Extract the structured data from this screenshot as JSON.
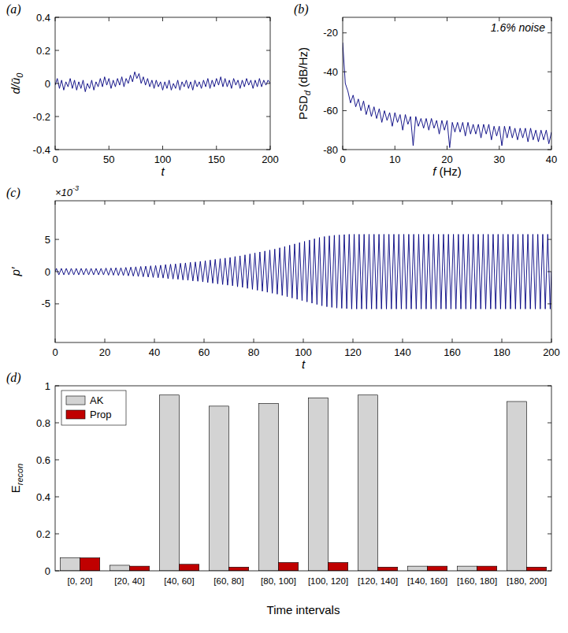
{
  "chart_data": [
    {
      "type": "line",
      "panel": "(a)",
      "xlabel": [
        {
          "text": "t"
        }
      ],
      "ylabel": [
        {
          "text": "d/ū"
        },
        {
          "text": "0",
          "sub": true
        }
      ],
      "xlim": [
        0,
        200
      ],
      "xticks": [
        0,
        50,
        100,
        150,
        200
      ],
      "ylim": [
        -0.4,
        0.4
      ],
      "yticks": [
        -0.4,
        -0.2,
        0,
        0.2,
        0.4
      ],
      "x": [
        0,
        2,
        4,
        6,
        8,
        10,
        12,
        14,
        16,
        18,
        20,
        22,
        24,
        26,
        28,
        30,
        32,
        34,
        36,
        38,
        40,
        42,
        44,
        46,
        48,
        50,
        52,
        54,
        56,
        58,
        60,
        62,
        64,
        66,
        68,
        70,
        72,
        74,
        76,
        78,
        80,
        82,
        84,
        86,
        88,
        90,
        92,
        94,
        96,
        98,
        100,
        102,
        104,
        106,
        108,
        110,
        112,
        114,
        116,
        118,
        120,
        122,
        124,
        126,
        128,
        130,
        132,
        134,
        136,
        138,
        140,
        142,
        144,
        146,
        148,
        150,
        152,
        154,
        156,
        158,
        160,
        162,
        164,
        166,
        168,
        170,
        172,
        174,
        176,
        178,
        180,
        182,
        184,
        186,
        188,
        190,
        192,
        194,
        196,
        198,
        200
      ],
      "series": [
        {
          "color": "#00007f",
          "values": [
            -0.01,
            0.03,
            -0.03,
            0.02,
            -0.04,
            0.01,
            -0.02,
            0.03,
            -0.03,
            0.02,
            -0.04,
            0.01,
            -0.03,
            0.02,
            -0.05,
            0,
            -0.03,
            0.02,
            -0.04,
            0.01,
            -0.02,
            0.03,
            -0.02,
            0.04,
            -0.01,
            0.03,
            -0.03,
            0.02,
            -0.02,
            0.03,
            -0.01,
            0.04,
            -0.02,
            0.03,
            0,
            0.05,
            0.01,
            0.07,
            0.03,
            0.06,
            0,
            0.04,
            -0.01,
            0.03,
            -0.02,
            0.02,
            -0.03,
            0.02,
            -0.02,
            0.01,
            -0.04,
            0.01,
            -0.03,
            0.02,
            -0.04,
            0,
            -0.03,
            0.02,
            -0.04,
            0.01,
            -0.02,
            0.02,
            -0.03,
            0.01,
            -0.04,
            0.02,
            -0.02,
            0.01,
            -0.03,
            0.02,
            -0.02,
            0.03,
            -0.03,
            0.02,
            -0.02,
            0.03,
            -0.01,
            0.04,
            -0.02,
            0.03,
            -0.02,
            0.02,
            -0.03,
            0.03,
            -0.01,
            0.02,
            -0.03,
            0.02,
            -0.02,
            0.03,
            -0.01,
            0.02,
            -0.03,
            0.02,
            -0.02,
            0.03,
            -0.02,
            0.02,
            -0.01,
            0.02,
            0
          ]
        }
      ]
    },
    {
      "type": "line",
      "panel": "(b)",
      "annotation": "1.6% noise",
      "xlabel": [
        {
          "text": "f"
        },
        {
          "text": " (Hz)"
        }
      ],
      "ylabel": [
        {
          "text": "PSD"
        },
        {
          "text": "d",
          "sub": true
        },
        {
          "text": " (dB/Hz)"
        }
      ],
      "xlim": [
        0,
        40
      ],
      "xticks": [
        0,
        10,
        20,
        30,
        40
      ],
      "ylim": [
        -80,
        -12
      ],
      "yticks": [
        -80,
        -60,
        -40,
        -20
      ],
      "x": [
        0,
        0.5,
        1,
        1.5,
        2,
        2.5,
        3,
        3.5,
        4,
        4.5,
        5,
        5.5,
        6,
        6.5,
        7,
        7.5,
        8,
        8.5,
        9,
        9.5,
        10,
        10.5,
        11,
        11.5,
        12,
        12.5,
        13,
        13.5,
        14,
        14.5,
        15,
        15.5,
        16,
        16.5,
        17,
        17.5,
        18,
        18.5,
        19,
        19.5,
        20,
        20.5,
        21,
        21.5,
        22,
        22.5,
        23,
        23.5,
        24,
        24.5,
        25,
        25.5,
        26,
        26.5,
        27,
        27.5,
        28,
        28.5,
        29,
        29.5,
        30,
        30.5,
        31,
        31.5,
        32,
        32.5,
        33,
        33.5,
        34,
        34.5,
        35,
        35.5,
        36,
        36.5,
        37,
        37.5,
        38,
        38.5,
        39,
        39.5,
        40
      ],
      "series": [
        {
          "color": "#00007f",
          "values": [
            -25,
            -46,
            -50,
            -56,
            -52,
            -58,
            -54,
            -60,
            -55,
            -62,
            -57,
            -63,
            -58,
            -64,
            -59,
            -66,
            -60,
            -65,
            -61,
            -68,
            -61,
            -66,
            -62,
            -70,
            -62,
            -67,
            -63,
            -78,
            -63,
            -68,
            -64,
            -69,
            -64,
            -70,
            -64,
            -69,
            -65,
            -72,
            -65,
            -70,
            -65,
            -79,
            -66,
            -71,
            -66,
            -71,
            -66,
            -73,
            -66,
            -72,
            -67,
            -72,
            -67,
            -74,
            -67,
            -72,
            -67,
            -75,
            -68,
            -73,
            -68,
            -78,
            -68,
            -74,
            -68,
            -74,
            -69,
            -75,
            -69,
            -74,
            -69,
            -76,
            -69,
            -75,
            -70,
            -76,
            -70,
            -75,
            -70,
            -77,
            -71
          ]
        }
      ]
    },
    {
      "type": "line",
      "panel": "(c)",
      "multiplier": [
        {
          "text": "×10"
        },
        {
          "text": "-3",
          "sup": true
        }
      ],
      "xlabel": [
        {
          "text": "t"
        }
      ],
      "ylabel": [
        {
          "text": "p′"
        }
      ],
      "xlim": [
        0,
        200
      ],
      "xticks": [
        0,
        20,
        40,
        60,
        80,
        100,
        120,
        140,
        160,
        180,
        200
      ],
      "ylim": [
        -11,
        11
      ],
      "yticks": [
        -5,
        0,
        5
      ],
      "x": [
        0,
        0.5,
        1.5,
        2.5,
        3.5,
        4.5,
        5.5,
        6.5,
        7.5,
        8.5,
        9.5,
        10.5,
        11.5,
        12.5,
        13.5,
        14.5,
        15.5,
        16.5,
        17.5,
        18.5,
        19.5,
        20.5,
        21.5,
        22.5,
        23.5,
        24.5,
        25.5,
        26.5,
        27.5,
        28.5,
        29.5,
        30.5,
        31.5,
        32.5,
        33.5,
        34.5,
        35.5,
        36.5,
        37.5,
        38.5,
        39.5,
        40.5,
        41.5,
        42.5,
        43.5,
        44.5,
        45.5,
        46.5,
        47.5,
        48.5,
        49.5,
        50.5,
        51.5,
        52.5,
        53.5,
        54.5,
        55.5,
        56.5,
        57.5,
        58.5,
        59.5,
        60.5,
        61.5,
        62.5,
        63.5,
        64.5,
        65.5,
        66.5,
        67.5,
        68.5,
        69.5,
        70.5,
        71.5,
        72.5,
        73.5,
        74.5,
        75.5,
        76.5,
        77.5,
        78.5,
        79.5,
        80.5,
        81.5,
        82.5,
        83.5,
        84.5,
        85.5,
        86.5,
        87.5,
        88.5,
        89.5,
        90.5,
        91.5,
        92.5,
        93.5,
        94.5,
        95.5,
        96.5,
        97.5,
        98.5,
        99.5,
        100.5,
        101.5,
        102.5,
        103.5,
        104.5,
        105.5,
        106.5,
        107.5,
        108.5,
        109.5,
        110.5,
        111.5,
        112.5,
        113.5,
        114.5,
        115.5,
        116.5,
        117.5,
        118.5,
        119.5,
        120.5,
        121.5,
        122.5,
        123.5,
        124.5,
        125.5,
        126.5,
        127.5,
        128.5,
        129.5,
        130.5,
        131.5,
        132.5,
        133.5,
        134.5,
        135.5,
        136.5,
        137.5,
        138.5,
        139.5,
        140.5,
        141.5,
        142.5,
        143.5,
        144.5,
        145.5,
        146.5,
        147.5,
        148.5,
        149.5,
        150.5,
        151.5,
        152.5,
        153.5,
        154.5,
        155.5,
        156.5,
        157.5,
        158.5,
        159.5,
        160.5,
        161.5,
        162.5,
        163.5,
        164.5,
        165.5,
        166.5,
        167.5,
        168.5,
        169.5,
        170.5,
        171.5,
        172.5,
        173.5,
        174.5,
        175.5,
        176.5,
        177.5,
        178.5,
        179.5,
        180.5,
        181.5,
        182.5,
        183.5,
        184.5,
        185.5,
        186.5,
        187.5,
        188.5,
        189.5,
        190.5,
        191.5,
        192.5,
        193.5,
        194.5,
        195.5,
        196.5,
        197.5,
        198.5,
        199.5,
        200
      ],
      "series": [
        {
          "color": "#00007f",
          "values": [
            0,
            0.5,
            -0.5,
            0.5,
            -0.5,
            0.5,
            -0.5,
            0.5,
            -0.5,
            0.5,
            -0.5,
            0.5,
            -0.5,
            0.5,
            -0.5,
            0.5,
            -0.5,
            0.5,
            -0.5,
            0.5,
            -0.5,
            0.55,
            -0.55,
            0.55,
            -0.55,
            0.6,
            -0.6,
            0.6,
            -0.6,
            0.65,
            -0.65,
            0.7,
            -0.7,
            0.75,
            -0.75,
            0.8,
            -0.8,
            0.85,
            -0.85,
            0.9,
            -0.9,
            0.95,
            -0.95,
            1,
            -1,
            1.1,
            -1.1,
            1.15,
            -1.15,
            1.2,
            -1.2,
            1.3,
            -1.3,
            1.35,
            -1.35,
            1.45,
            -1.45,
            1.5,
            -1.5,
            1.6,
            -1.6,
            1.7,
            -1.7,
            1.8,
            -1.8,
            1.9,
            -1.9,
            2,
            -2,
            2.1,
            -2.1,
            2.2,
            -2.2,
            2.35,
            -2.35,
            2.45,
            -2.45,
            2.6,
            -2.6,
            2.75,
            -2.75,
            2.9,
            -2.9,
            3.05,
            -3.05,
            3.2,
            -3.2,
            3.35,
            -3.35,
            3.5,
            -3.5,
            3.7,
            -3.7,
            3.9,
            -3.9,
            4.1,
            -4.1,
            4.3,
            -4.3,
            4.5,
            -4.5,
            4.7,
            -4.7,
            4.9,
            -4.9,
            5.1,
            -5.1,
            5.3,
            -5.3,
            5.45,
            -5.45,
            5.55,
            -5.55,
            5.65,
            -5.65,
            5.7,
            -5.7,
            5.75,
            -5.75,
            5.8,
            -5.8,
            5.8,
            -5.8,
            5.8,
            -5.8,
            5.8,
            -5.8,
            5.8,
            -5.8,
            5.8,
            -5.8,
            5.8,
            -5.8,
            5.8,
            -5.8,
            5.8,
            -5.8,
            5.8,
            -5.8,
            5.8,
            -5.8,
            5.8,
            -5.8,
            5.8,
            -5.8,
            5.8,
            -5.8,
            5.8,
            -5.8,
            5.8,
            -5.8,
            5.8,
            -5.8,
            5.8,
            -5.8,
            5.8,
            -5.8,
            5.8,
            -5.8,
            5.8,
            -5.8,
            5.8,
            -5.8,
            5.8,
            -5.8,
            5.8,
            -5.8,
            5.8,
            -5.8,
            5.8,
            -5.8,
            5.8,
            -5.8,
            5.8,
            -5.8,
            5.8,
            -5.8,
            5.8,
            -5.8,
            5.8,
            -5.8,
            5.8,
            -5.8,
            5.8,
            -5.8,
            5.8,
            -5.8,
            5.8,
            -5.8,
            5.8,
            -5.8,
            5.8,
            -5.8,
            5.8,
            -5.8,
            5.8,
            -5.8,
            5.8,
            -5.8,
            5.8,
            -5.8,
            0
          ]
        }
      ]
    },
    {
      "type": "bar",
      "panel": "(d)",
      "xlabel": [
        {
          "text": "Time intervals"
        }
      ],
      "ylabel": [
        {
          "text": "E"
        },
        {
          "text": "recon",
          "sub": true
        }
      ],
      "categories": [
        "[0, 20]",
        "[20, 40]",
        "[40, 60]",
        "[60, 80]",
        "[80, 100]",
        "[100, 120]",
        "[120, 140]",
        "[140, 160]",
        "[160, 180]",
        "[180, 200]"
      ],
      "ylim": [
        0,
        1
      ],
      "yticks": [
        0,
        0.2,
        0.4,
        0.6,
        0.8,
        1
      ],
      "legend": "upper left",
      "series": [
        {
          "name": "AK",
          "color": "#d3d3d3",
          "values": [
            0.07,
            0.03,
            0.95,
            0.89,
            0.905,
            0.935,
            0.95,
            0.025,
            0.025,
            0.915
          ]
        },
        {
          "name": "Prop",
          "color": "#c00000",
          "values": [
            0.07,
            0.025,
            0.035,
            0.02,
            0.045,
            0.045,
            0.02,
            0.025,
            0.025,
            0.02
          ]
        }
      ]
    }
  ]
}
